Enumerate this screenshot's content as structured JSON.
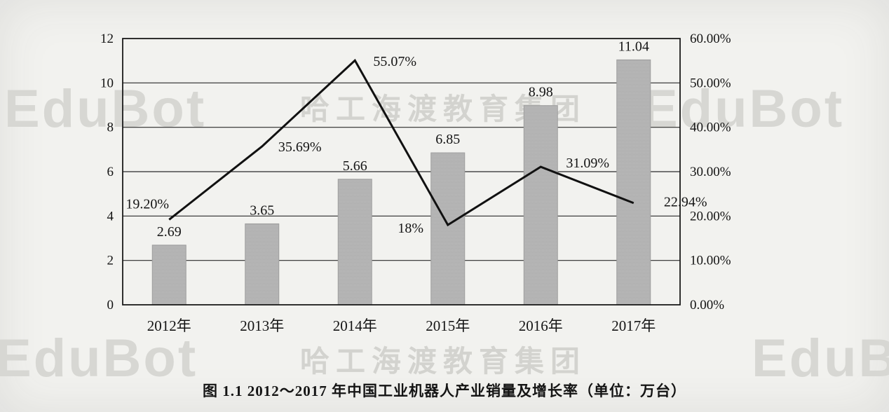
{
  "chart_data": {
    "type": "bar+line",
    "categories": [
      "2012年",
      "2013年",
      "2014年",
      "2015年",
      "2016年",
      "2017年"
    ],
    "series": [
      {
        "name": "产业销量(万台)",
        "type": "bar",
        "values": [
          2.69,
          3.65,
          5.66,
          6.85,
          8.98,
          11.04
        ],
        "labels": [
          "2.69",
          "3.65",
          "5.66",
          "6.85",
          "8.98",
          "11.04"
        ]
      },
      {
        "name": "增长率",
        "type": "line",
        "values": [
          19.2,
          35.69,
          55.07,
          18,
          31.09,
          22.94
        ],
        "labels": [
          "19.20%",
          "35.69%",
          "55.07%",
          "18%",
          "31.09%",
          "22.94%"
        ]
      }
    ],
    "left_axis": {
      "min": 0,
      "max": 12,
      "ticks": [
        "0",
        "2",
        "4",
        "6",
        "8",
        "10",
        "12"
      ]
    },
    "right_axis": {
      "min": 0,
      "max": 60,
      "ticks": [
        "0.00%",
        "10.00%",
        "20.00%",
        "30.00%",
        "40.00%",
        "50.00%",
        "60.00%"
      ]
    },
    "grid": "horizontal",
    "legend": "none",
    "caption": "图 1.1  2012～2017 年中国工业机器人产业销量及增长率（单位：万台）",
    "colors": {
      "bar_fill": "#bdbdbd",
      "line": "#111111",
      "grid": "#2a2a2a",
      "background": "#f2f2ef"
    }
  },
  "watermarks": {
    "brand": "EduBot",
    "cn": "哈工海渡教育集团"
  }
}
